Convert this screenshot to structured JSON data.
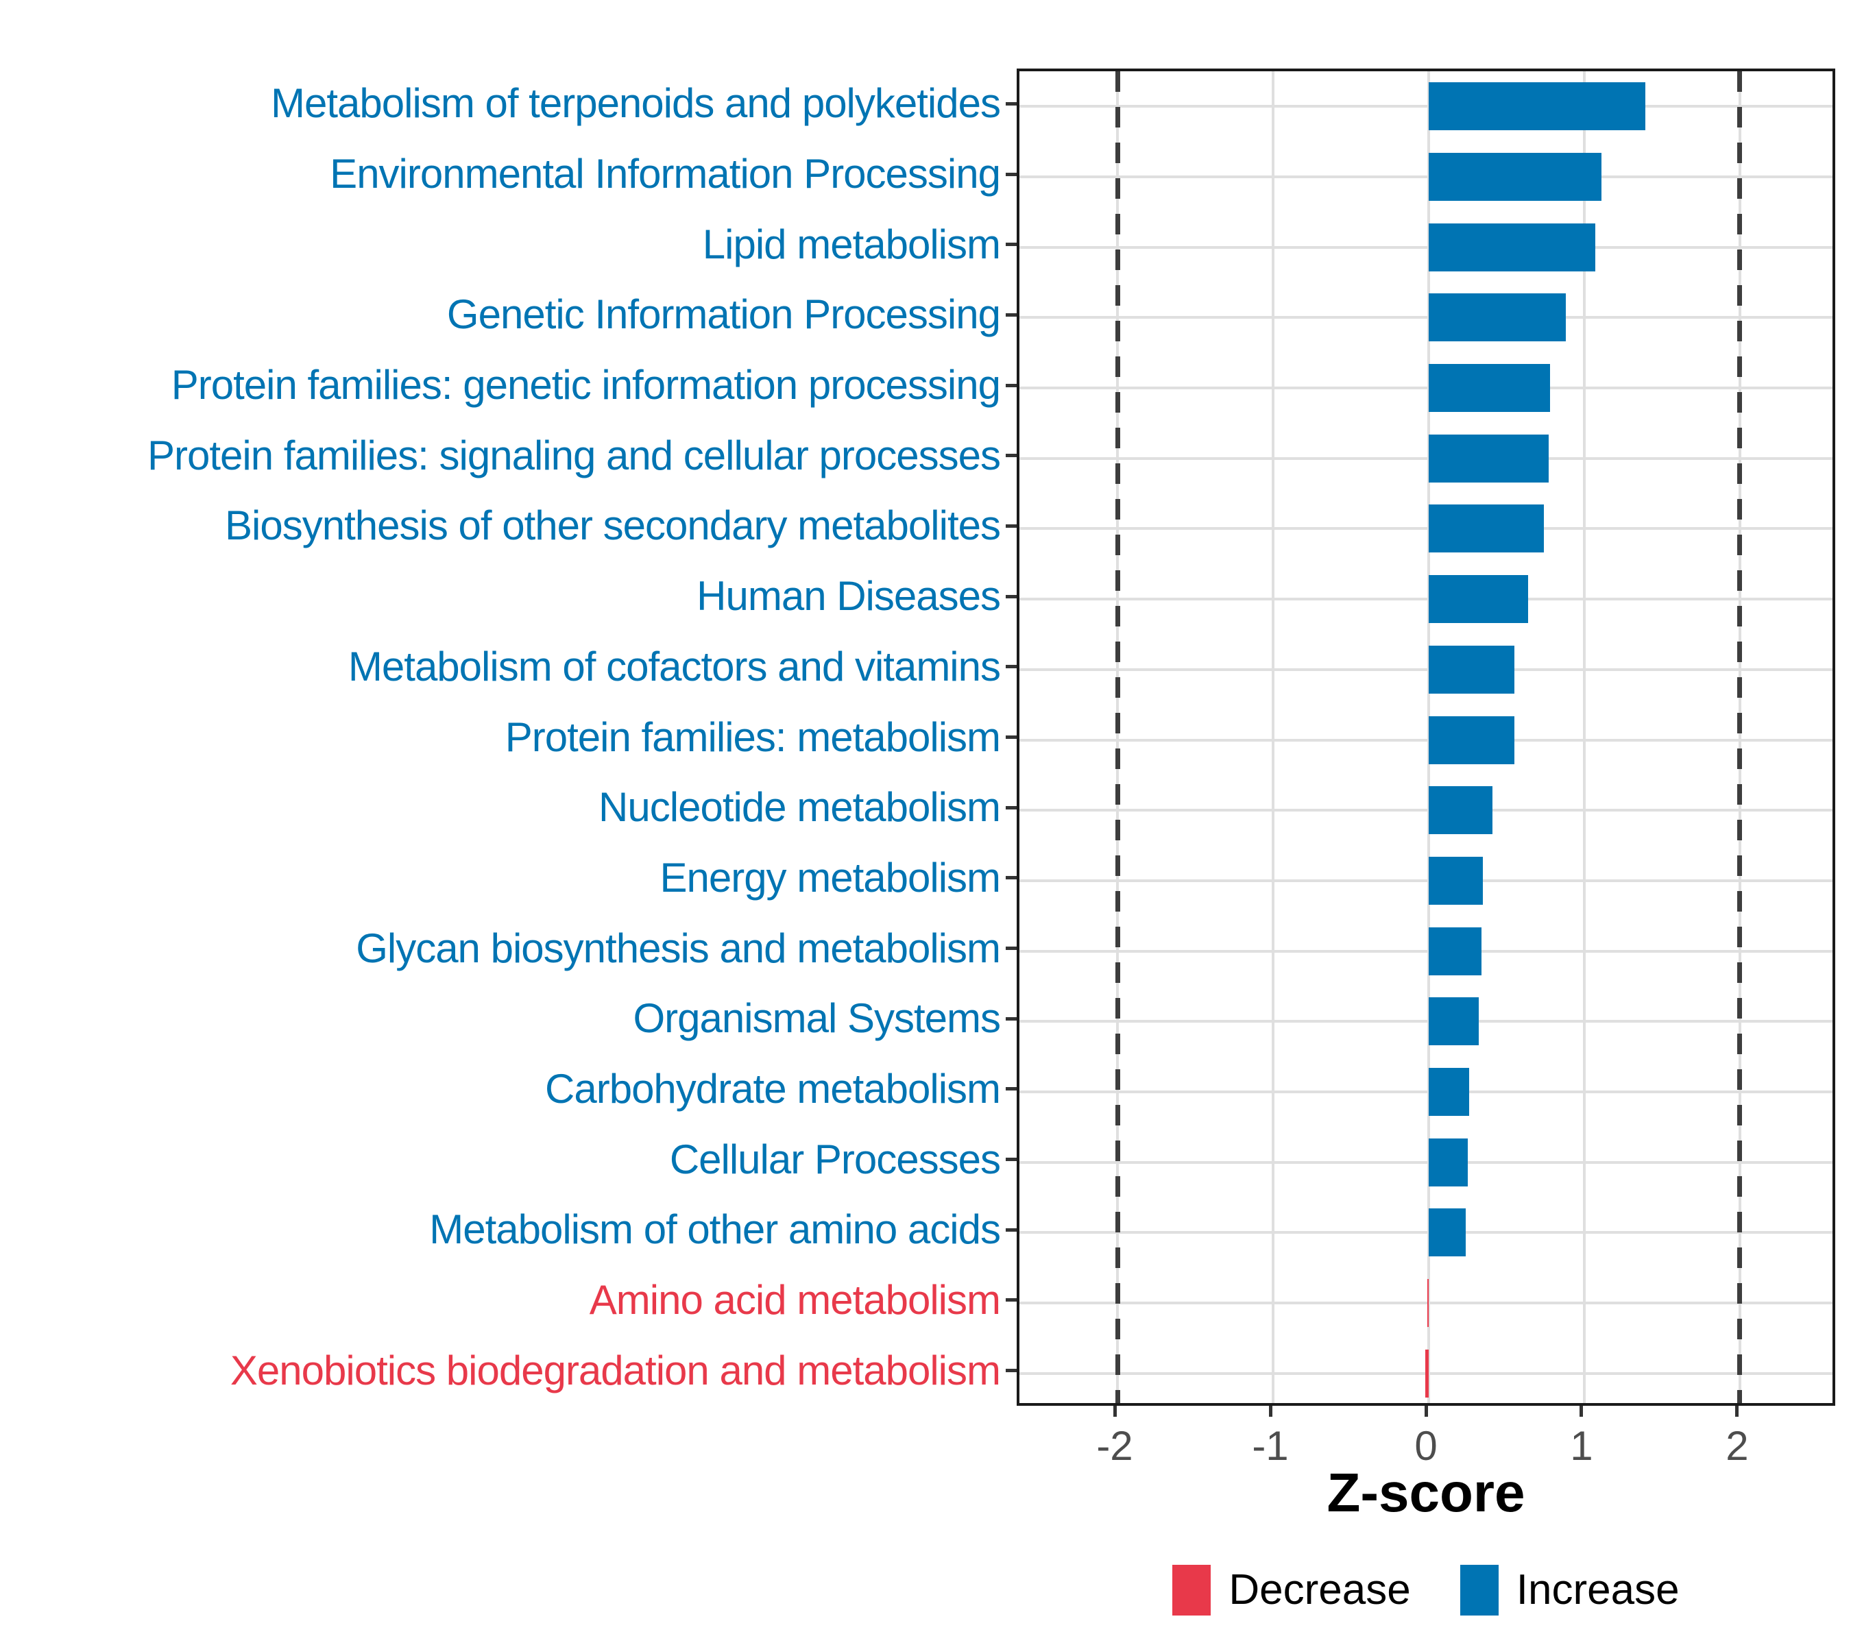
{
  "chart_data": {
    "type": "bar",
    "orientation": "horizontal",
    "xlabel": "Z-score",
    "ylabel": "",
    "xlim": [
      -2.63,
      2.63
    ],
    "x_ticks": [
      -2,
      -1,
      0,
      1,
      2
    ],
    "x_tick_labels": [
      "-2",
      "-1",
      "0",
      "1",
      "2"
    ],
    "reference_lines": [
      -2,
      2
    ],
    "grid": true,
    "categories": [
      "Metabolism of terpenoids and polyketides",
      "Environmental Information Processing",
      "Lipid metabolism",
      "Genetic Information Processing",
      "Protein families: genetic information processing",
      "Protein families: signaling and cellular processes",
      "Biosynthesis of other secondary metabolites",
      "Human Diseases",
      "Metabolism of cofactors and vitamins",
      "Protein families: metabolism",
      "Nucleotide metabolism",
      "Energy metabolism",
      "Glycan biosynthesis and metabolism",
      "Organismal Systems",
      "Carbohydrate metabolism",
      "Cellular Processes",
      "Metabolism of other amino acids",
      "Amino acid metabolism",
      "Xenobiotics biodegradation and metabolism"
    ],
    "values": [
      1.39,
      1.11,
      1.07,
      0.88,
      0.78,
      0.77,
      0.74,
      0.64,
      0.55,
      0.55,
      0.41,
      0.35,
      0.34,
      0.32,
      0.26,
      0.25,
      0.24,
      -0.01,
      -0.02
    ],
    "directions": [
      "Increase",
      "Increase",
      "Increase",
      "Increase",
      "Increase",
      "Increase",
      "Increase",
      "Increase",
      "Increase",
      "Increase",
      "Increase",
      "Increase",
      "Increase",
      "Increase",
      "Increase",
      "Increase",
      "Increase",
      "Decrease",
      "Decrease"
    ],
    "colors": {
      "increase": "#0074B3",
      "decrease": "#E8394A",
      "grid": "#DFDFDF",
      "reference_line": "#3D3D3D",
      "tick_text": "#4D4D4D"
    },
    "legend_position": "bottom",
    "legend": {
      "entries": [
        {
          "label": "Decrease",
          "color": "#E8394A"
        },
        {
          "label": "Increase",
          "color": "#0074B3"
        }
      ]
    }
  }
}
